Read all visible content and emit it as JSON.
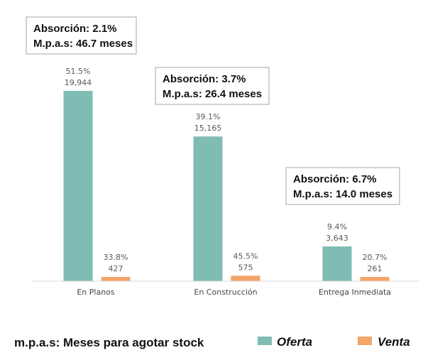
{
  "chart_data": {
    "type": "bar",
    "categories": [
      "En Planos",
      "En Construcción",
      "Entrega Inmediata"
    ],
    "series": [
      {
        "name": "Oferta",
        "color": "#7fbcb3",
        "values": [
          19944,
          15165,
          3643
        ],
        "value_labels": [
          "19,944",
          "15,165",
          "3,643"
        ],
        "pct_labels": [
          "51.5%",
          "39.1%",
          "9.4%"
        ]
      },
      {
        "name": "Venta",
        "color": "#f3a56a",
        "values": [
          427,
          575,
          261
        ],
        "value_labels": [
          "427",
          "575",
          "261"
        ],
        "pct_labels": [
          "33.8%",
          "45.5%",
          "20.7%"
        ]
      }
    ],
    "ylim": [
      0,
      19944
    ],
    "grid": false,
    "legend_position": "bottom-right",
    "annotations": [
      {
        "category": "En Planos",
        "line1": "Absorción: 2.1%",
        "line2": "M.p.a.s: 46.7 meses"
      },
      {
        "category": "En Construcción",
        "line1": "Absorción: 3.7%",
        "line2": "M.p.a.s: 26.4 meses"
      },
      {
        "category": "Entrega Inmediata",
        "line1": "Absorción: 6.7%",
        "line2": "M.p.a.s: 14.0 meses"
      }
    ]
  },
  "footnote": "m.p.a.s: Meses para agotar stock"
}
